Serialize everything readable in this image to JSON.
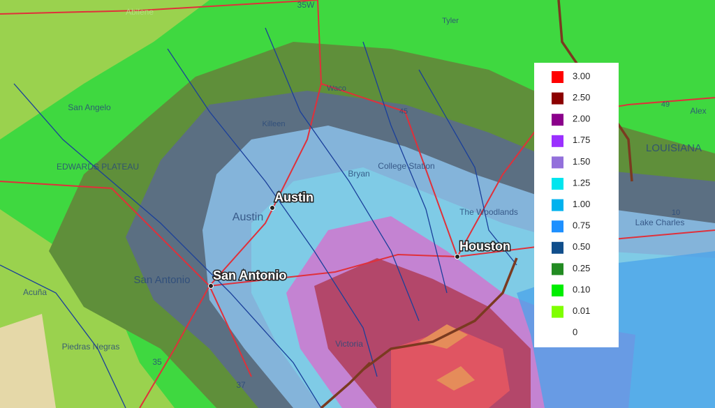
{
  "legend": {
    "items": [
      {
        "label": "3.00",
        "color": "#ff0000"
      },
      {
        "label": "2.50",
        "color": "#8b0000"
      },
      {
        "label": "2.00",
        "color": "#8b008b"
      },
      {
        "label": "1.75",
        "color": "#9b30ff"
      },
      {
        "label": "1.50",
        "color": "#9370db"
      },
      {
        "label": "1.25",
        "color": "#00e5ee"
      },
      {
        "label": "1.00",
        "color": "#00b2ee"
      },
      {
        "label": "0.75",
        "color": "#1e90ff"
      },
      {
        "label": "0.50",
        "color": "#104e8b"
      },
      {
        "label": "0.25",
        "color": "#228b22"
      },
      {
        "label": "0.10",
        "color": "#00ee00"
      },
      {
        "label": "0.01",
        "color": "#7fff00"
      },
      {
        "label": "0",
        "color": "#ffffff"
      }
    ]
  },
  "cities": [
    "Austin",
    "Houston",
    "San Antonio"
  ],
  "map_labels": [
    "Abilene",
    "35W",
    "Tyler",
    "San Angelo",
    "Waco",
    "Killeen",
    "45",
    "49",
    "Alex",
    "LOUISIANA",
    "College Station",
    "Bryan",
    "Austin",
    "The Woodlands",
    "Lake Charles",
    "10",
    "San Antonio",
    "EDWARDS PLATEAU",
    "Acuña",
    "Piedras Negras",
    "35",
    "37",
    "Victoria"
  ]
}
